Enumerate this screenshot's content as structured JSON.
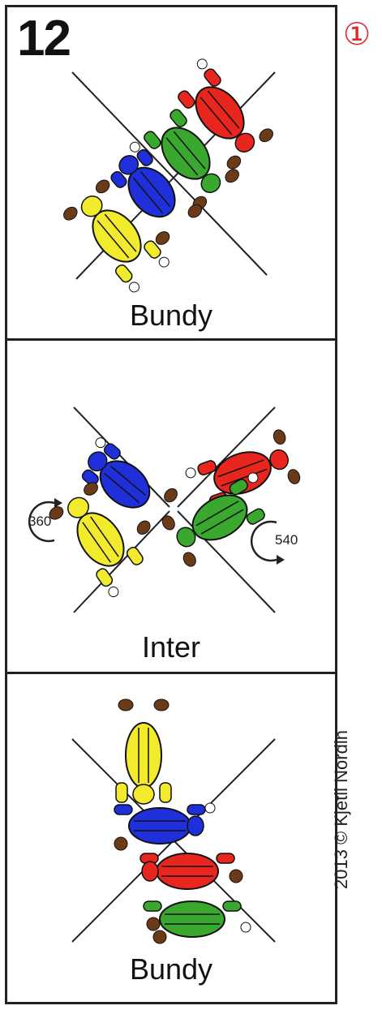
{
  "dive_number": "12",
  "page_marker": "①",
  "copyright": "2013 © Kjetil Nordin",
  "panels": [
    {
      "caption": "Bundy"
    },
    {
      "caption": "Inter",
      "left_turn": "360",
      "right_turn": "540"
    },
    {
      "caption": "Bundy"
    }
  ],
  "colors": {
    "red": "#e8261e",
    "green": "#3aa82e",
    "blue": "#1f2fd9",
    "yellow": "#f2ea2c",
    "boots": "#6b3b17",
    "border": "#222222",
    "marker": "#d92b2b"
  },
  "icons": [
    "rotation-arrow-360-icon",
    "rotation-arrow-540-icon"
  ]
}
